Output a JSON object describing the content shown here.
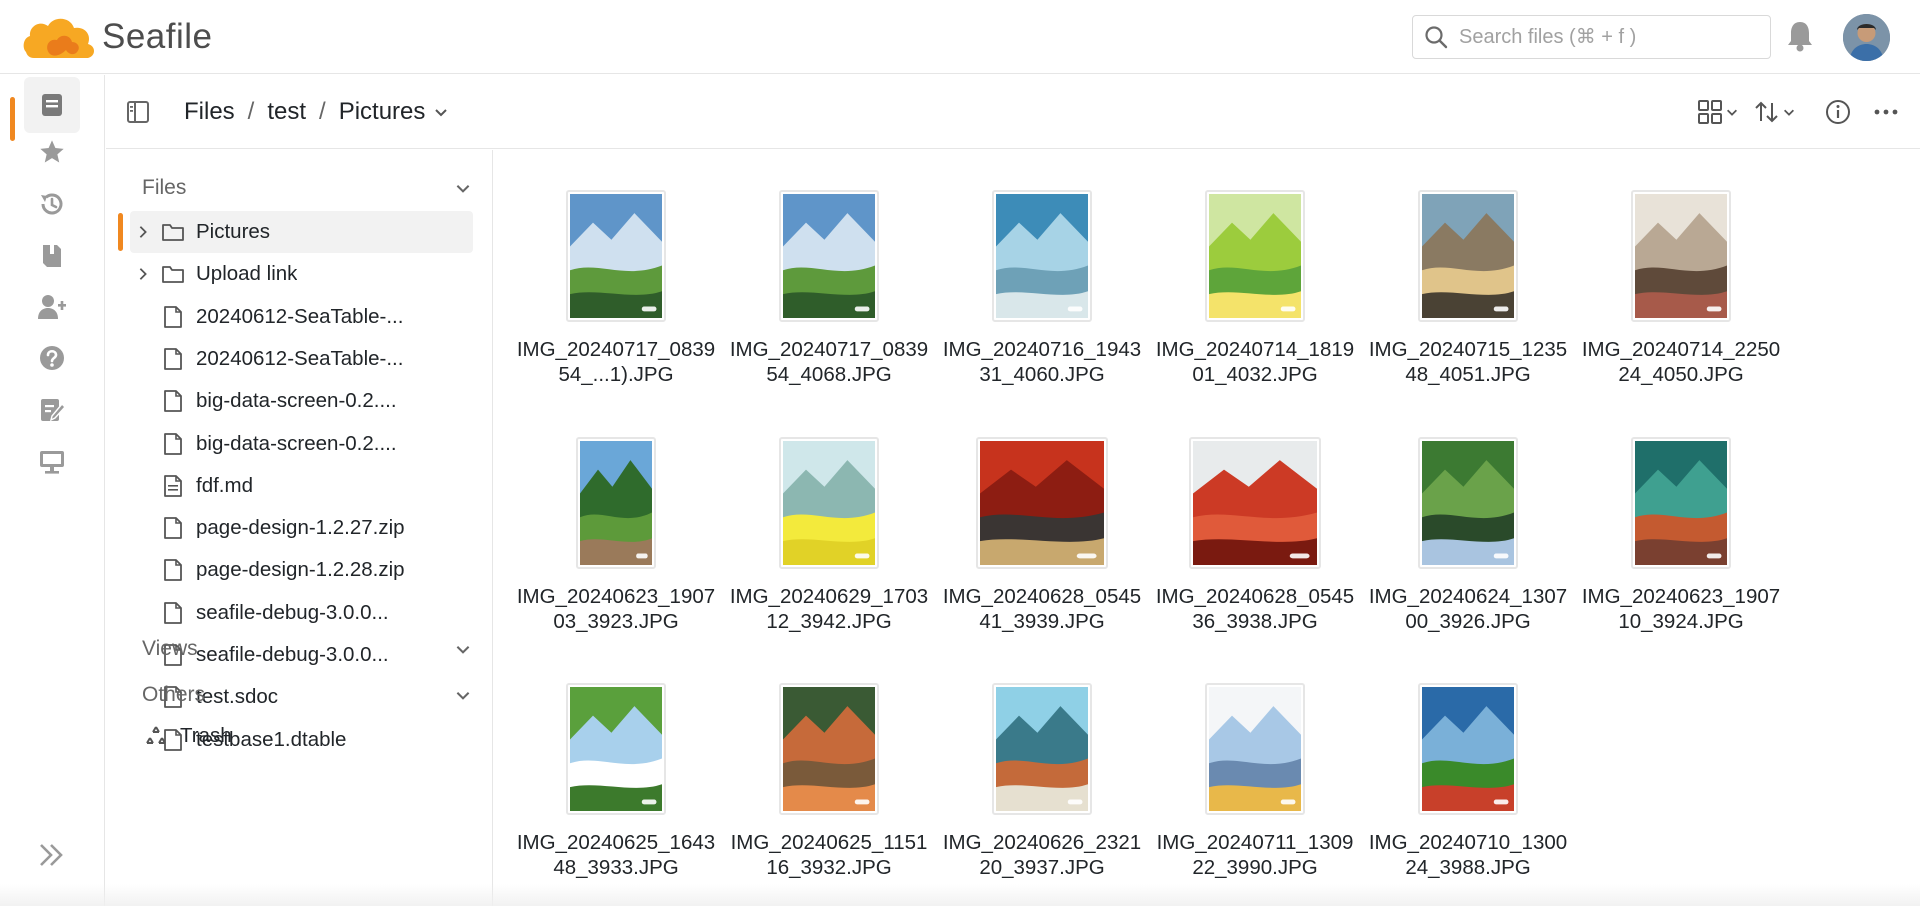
{
  "app": {
    "logo_text": "Seafile",
    "accent": "#f08820"
  },
  "search": {
    "placeholder": "Search files (⌘ + f )"
  },
  "toolbar": {
    "breadcrumb": [
      "Files",
      "test",
      "Pictures"
    ],
    "separator": "/"
  },
  "tree": {
    "sections": {
      "files": "Files",
      "views": "Views",
      "others": "Others"
    },
    "items": [
      {
        "label": "Pictures",
        "type": "folder",
        "selected": true
      },
      {
        "label": "Upload link",
        "type": "folder"
      },
      {
        "label": "20240612-SeaTable-...",
        "type": "file"
      },
      {
        "label": "20240612-SeaTable-...",
        "type": "file"
      },
      {
        "label": "big-data-screen-0.2....",
        "type": "file"
      },
      {
        "label": "big-data-screen-0.2....",
        "type": "file"
      },
      {
        "label": "fdf.md",
        "type": "md"
      },
      {
        "label": "page-design-1.2.27.zip",
        "type": "file"
      },
      {
        "label": "page-design-1.2.28.zip",
        "type": "file"
      },
      {
        "label": "seafile-debug-3.0.0...",
        "type": "file"
      },
      {
        "label": "seafile-debug-3.0.0...",
        "type": "file"
      },
      {
        "label": "test.sdoc",
        "type": "file"
      },
      {
        "label": "testbase1.dtable",
        "type": "file"
      }
    ],
    "trash": "Trash"
  },
  "grid": {
    "files": [
      {
        "name": "IMG_20240717_083954_...1).JPG",
        "orientation": "portrait",
        "palette": [
          "#5f95c9",
          "#cfe0ef",
          "#5e9a3c",
          "#2f5d2a"
        ]
      },
      {
        "name": "IMG_20240717_083954_4068.JPG",
        "orientation": "portrait",
        "palette": [
          "#5f95c9",
          "#cfe0ef",
          "#5e9a3c",
          "#2f5d2a"
        ]
      },
      {
        "name": "IMG_20240716_194331_4060.JPG",
        "orientation": "portrait",
        "palette": [
          "#3d8cb8",
          "#a7d3e6",
          "#6ea1b7",
          "#d9e7ea"
        ]
      },
      {
        "name": "IMG_20240714_181901_4032.JPG",
        "orientation": "portrait",
        "palette": [
          "#cfe6a1",
          "#9ccc3d",
          "#5ea53a",
          "#f4e36a"
        ]
      },
      {
        "name": "IMG_20240715_123548_4051.JPG",
        "orientation": "portrait",
        "palette": [
          "#7fa3b8",
          "#8a7a62",
          "#e0c48a",
          "#4a4234"
        ]
      },
      {
        "name": "IMG_20240714_225024_4050.JPG",
        "orientation": "portrait",
        "palette": [
          "#e8e2d8",
          "#b9a894",
          "#5f4a3a",
          "#a75a4a"
        ]
      },
      {
        "name": "IMG_20240623_190703_3923.JPG",
        "orientation": "portrait",
        "palette": [
          "#6aa7d8",
          "#2f6b2c",
          "#5d9a3a",
          "#9a7a5a"
        ]
      },
      {
        "name": "IMG_20240629_170312_3942.JPG",
        "orientation": "portrait",
        "palette": [
          "#cfe7ea",
          "#8cb7b1",
          "#f3ea3c",
          "#e1d227"
        ]
      },
      {
        "name": "IMG_20240628_054541_3939.JPG",
        "orientation": "landscape",
        "palette": [
          "#c7331d",
          "#8d1d12",
          "#3a3533",
          "#c8a86e"
        ]
      },
      {
        "name": "IMG_20240628_054536_3938.JPG",
        "orientation": "landscape",
        "palette": [
          "#e8ebec",
          "#cc3a25",
          "#e05a3a",
          "#7a1a10"
        ]
      },
      {
        "name": "IMG_20240624_130700_3926.JPG",
        "orientation": "portrait",
        "palette": [
          "#3c7a32",
          "#6aa24a",
          "#2a4a2a",
          "#a9c4e0"
        ]
      },
      {
        "name": "IMG_20240623_190710_3924.JPG",
        "orientation": "portrait",
        "palette": [
          "#1f6f6a",
          "#3fa090",
          "#c45a30",
          "#7a4030"
        ]
      },
      {
        "name": "IMG_20240625_164348_3933.JPG",
        "orientation": "portrait",
        "palette": [
          "#5aa03c",
          "#a8d0ec",
          "#ffffff",
          "#3c7a2c"
        ]
      },
      {
        "name": "IMG_20240625_115116_3932.JPG",
        "orientation": "portrait",
        "palette": [
          "#3a5a34",
          "#c66a3a",
          "#7a5a3a",
          "#e48a4a"
        ]
      },
      {
        "name": "IMG_20240626_232120_3937.JPG",
        "orientation": "portrait",
        "palette": [
          "#8fd0e6",
          "#3a7a8a",
          "#c46a3a",
          "#e6e0d0"
        ]
      },
      {
        "name": "IMG_20240711_130922_3990.JPG",
        "orientation": "portrait",
        "palette": [
          "#f4f6f8",
          "#a8c8e6",
          "#6a8ab0",
          "#e8b84a"
        ]
      },
      {
        "name": "IMG_20240710_130024_3988.JPG",
        "orientation": "portrait",
        "palette": [
          "#2a6aa8",
          "#7ab0d8",
          "#3a8a2a",
          "#c8402a"
        ]
      }
    ]
  }
}
